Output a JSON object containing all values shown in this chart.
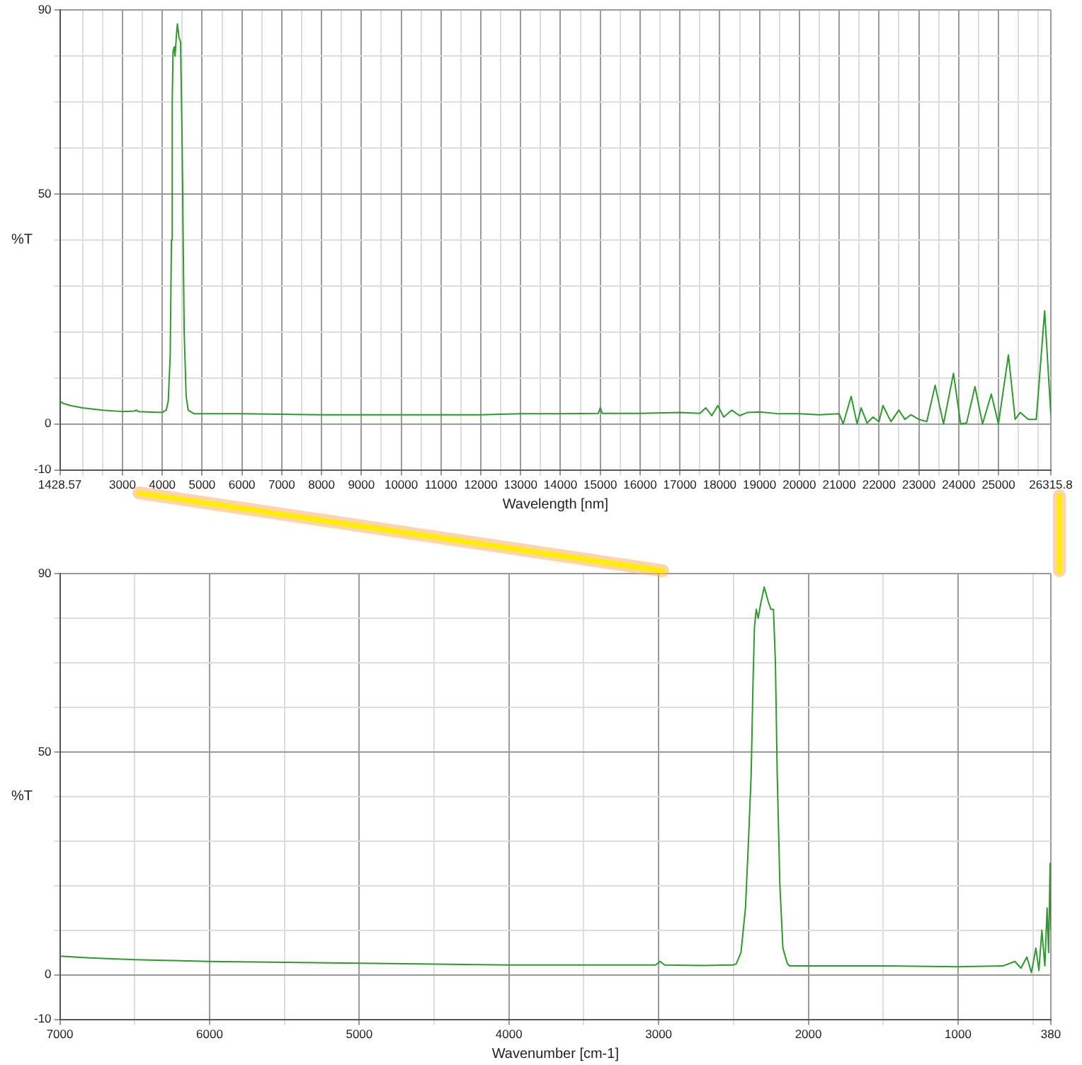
{
  "chart_data": [
    {
      "type": "line",
      "xlabel": "Wavelength [nm]",
      "ylabel": "%T",
      "xlim": [
        1428.57,
        26315.8
      ],
      "ylim": [
        -10,
        90
      ],
      "xticks": [
        1428.57,
        {
          "value": 2000,
          "label": null
        },
        {
          "value": 2500,
          "label": null
        },
        3000,
        {
          "value": 3500,
          "label": null
        },
        4000,
        {
          "value": 4500,
          "label": null
        },
        5000,
        {
          "value": 5500,
          "label": null
        },
        6000,
        {
          "value": 6500,
          "label": null
        },
        7000,
        {
          "value": 7500,
          "label": null
        },
        8000,
        {
          "value": 8500,
          "label": null
        },
        9000,
        {
          "value": 9500,
          "label": null
        },
        10000,
        {
          "value": 10500,
          "label": null
        },
        11000,
        {
          "value": 11500,
          "label": null
        },
        12000,
        {
          "value": 12500,
          "label": null
        },
        13000,
        {
          "value": 13500,
          "label": null
        },
        14000,
        {
          "value": 14500,
          "label": null
        },
        15000,
        {
          "value": 15500,
          "label": null
        },
        16000,
        {
          "value": 16500,
          "label": null
        },
        17000,
        {
          "value": 17500,
          "label": null
        },
        18000,
        {
          "value": 18500,
          "label": null
        },
        19000,
        {
          "value": 19500,
          "label": null
        },
        20000,
        {
          "value": 20500,
          "label": null
        },
        21000,
        {
          "value": 21500,
          "label": null
        },
        22000,
        {
          "value": 22500,
          "label": null
        },
        23000,
        {
          "value": 23500,
          "label": null
        },
        24000,
        {
          "value": 24500,
          "label": null
        },
        25000,
        {
          "value": 25500,
          "label": null
        },
        {
          "value": 26000,
          "label": null
        },
        26315.8
      ],
      "yticks": [
        -10,
        0,
        {
          "value": 10,
          "label": null
        },
        {
          "value": 20,
          "label": null
        },
        {
          "value": 30,
          "label": null
        },
        {
          "value": 40,
          "label": null
        },
        50,
        {
          "value": 60,
          "label": null
        },
        {
          "value": 70,
          "label": null
        },
        {
          "value": 80,
          "label": null
        },
        90
      ],
      "grid": true,
      "legend": false,
      "marker": "none",
      "line_style": "solid",
      "series": [
        {
          "color": "#2e9a2e",
          "x": [
            1428.57,
            1500,
            1700,
            2000,
            2500,
            3000,
            3300,
            3350,
            3400,
            4000,
            4100,
            4150,
            4200,
            4230,
            4250,
            4270,
            4300,
            4320,
            4360,
            4380,
            4420,
            4460,
            4500,
            4550,
            4600,
            4650,
            4800,
            6000,
            8000,
            10000,
            12000,
            13000,
            14000,
            14950,
            15000,
            15050,
            16000,
            17000,
            17500,
            17650,
            17800,
            17950,
            18100,
            18300,
            18500,
            18700,
            19000,
            19500,
            20000,
            20500,
            21000,
            21100,
            21300,
            21450,
            21550,
            21700,
            21850,
            22000,
            22100,
            22300,
            22500,
            22650,
            22800,
            23000,
            23200,
            23410,
            23620,
            23870,
            24050,
            24200,
            24410,
            24600,
            24820,
            25000,
            25250,
            25420,
            25550,
            25750,
            25950,
            26160,
            26260,
            26315.8
          ],
          "values": [
            5,
            4.5,
            4,
            3.5,
            3,
            2.7,
            2.8,
            3,
            2.7,
            2.5,
            3,
            5,
            15,
            40,
            70,
            81,
            82,
            80,
            85,
            87,
            84,
            83,
            60,
            20,
            6,
            3,
            2.2,
            2.2,
            2,
            2,
            2,
            2.2,
            2.2,
            2.3,
            3.5,
            2.3,
            2.3,
            2.5,
            2.3,
            3.5,
            1.8,
            4,
            1.5,
            3,
            1.8,
            2.5,
            2.6,
            2.2,
            2.2,
            2,
            2.2,
            0,
            6,
            0,
            3.5,
            0.2,
            1.5,
            0.5,
            4,
            0.5,
            3,
            1,
            2,
            1,
            0.5,
            8.4,
            0,
            11,
            0,
            0.2,
            8.1,
            0,
            6.5,
            0,
            15,
            1,
            2.5,
            1,
            1,
            24.6,
            10,
            2
          ]
        }
      ]
    },
    {
      "type": "line",
      "xlabel": "Wavenumber [cm-1]",
      "ylabel": "%T",
      "xlim": [
        7000,
        380
      ],
      "ylim": [
        -10,
        90
      ],
      "xticks": [
        7000,
        {
          "value": 6500,
          "label": null
        },
        6000,
        {
          "value": 5500,
          "label": null
        },
        5000,
        {
          "value": 4500,
          "label": null
        },
        4000,
        {
          "value": 3500,
          "label": null
        },
        3000,
        {
          "value": 2500,
          "label": null
        },
        2000,
        {
          "value": 1500,
          "label": null
        },
        1000,
        {
          "value": 500,
          "label": null
        },
        380
      ],
      "yticks": [
        -10,
        0,
        {
          "value": 10,
          "label": null
        },
        {
          "value": 20,
          "label": null
        },
        {
          "value": 30,
          "label": null
        },
        {
          "value": 40,
          "label": null
        },
        50,
        {
          "value": 60,
          "label": null
        },
        {
          "value": 70,
          "label": null
        },
        {
          "value": 80,
          "label": null
        },
        90
      ],
      "grid": true,
      "legend": false,
      "marker": "none",
      "line_style": "solid",
      "series": [
        {
          "color": "#2e9a2e",
          "x": [
            7000,
            6800,
            6500,
            6000,
            5500,
            5000,
            4500,
            4000,
            3500,
            3020,
            2990,
            2960,
            2700,
            2500,
            2481,
            2450,
            2420,
            2400,
            2382,
            2370,
            2360,
            2348,
            2335,
            2320,
            2295,
            2270,
            2250,
            2233,
            2220,
            2208,
            2190,
            2170,
            2140,
            2124,
            1800,
            1500,
            1000,
            700,
            620,
            580,
            540,
            510,
            480,
            460,
            440,
            420,
            405,
            395,
            385,
            380
          ],
          "values": [
            4.2,
            3.8,
            3.4,
            3,
            2.8,
            2.6,
            2.4,
            2.2,
            2.2,
            2.2,
            3,
            2.2,
            2.1,
            2.2,
            2.5,
            5,
            15,
            30,
            45,
            65,
            78,
            82,
            80,
            83,
            87,
            84,
            82,
            82,
            70,
            45,
            20,
            6,
            2.5,
            2,
            2,
            2,
            1.8,
            2,
            3,
            1.5,
            4,
            0.5,
            6,
            1,
            10,
            2,
            15,
            5,
            25,
            10
          ]
        }
      ]
    }
  ]
}
